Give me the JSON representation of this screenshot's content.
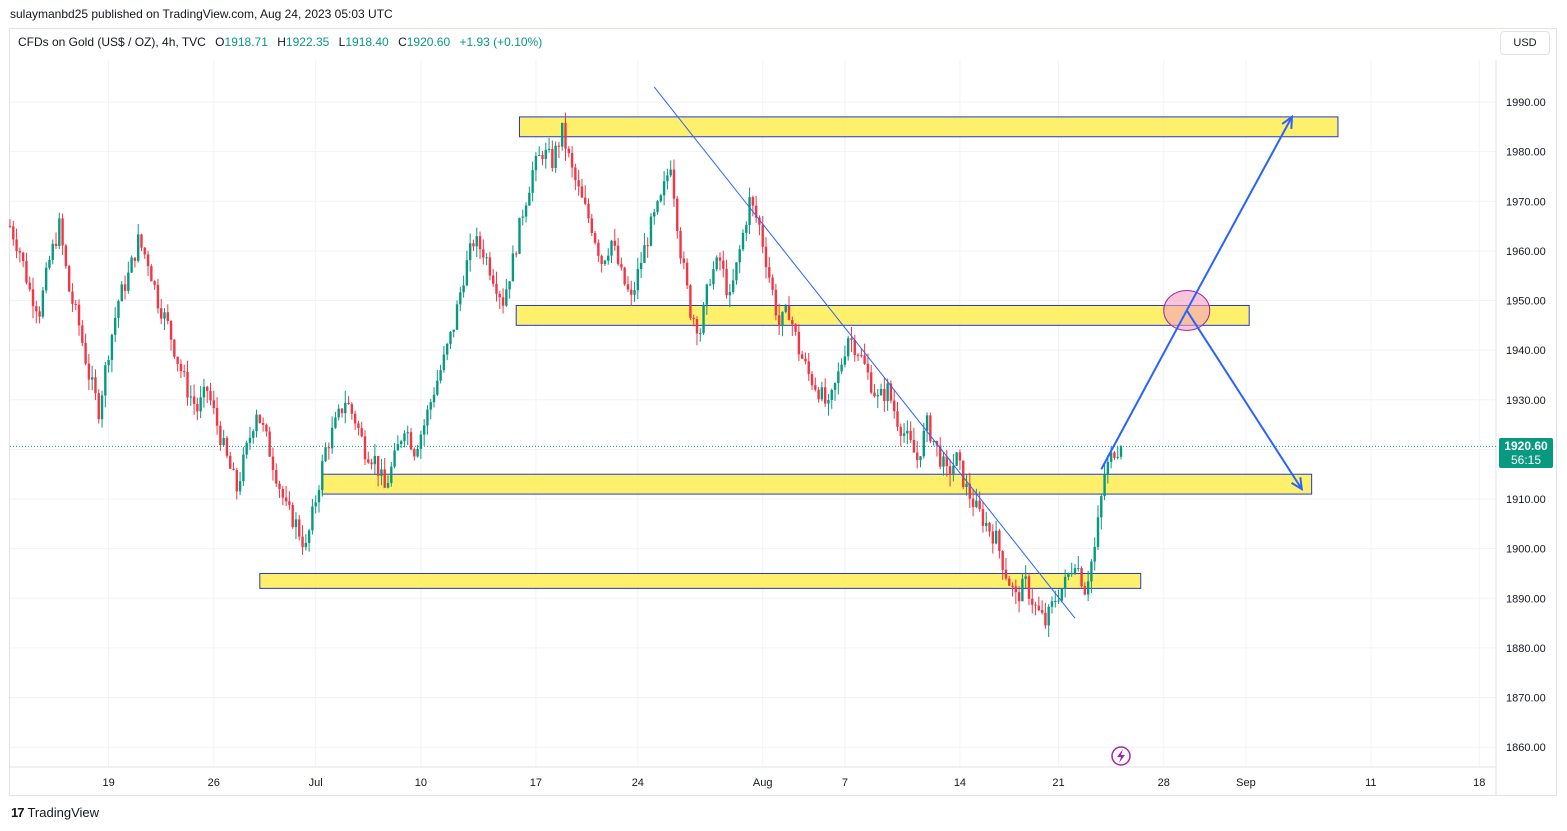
{
  "header": {
    "publish": "sulaymanbd25 published on TradingView.com, Aug 24, 2023 05:03 UTC",
    "symbol": "CFDs on Gold (US$ / OZ), 4h, TVC",
    "o_label": "O",
    "o_value": "1918.71",
    "h_label": "H",
    "h_value": "1922.35",
    "l_label": "L",
    "l_value": "1918.40",
    "c_label": "C",
    "c_value": "1920.60",
    "change": "+1.93 (+0.10%)"
  },
  "currency_button": "USD",
  "price_badge": {
    "price": "1920.60",
    "countdown": "56:15"
  },
  "footer": {
    "brand": "TradingView",
    "logo_icon": "tradingview-logo-icon"
  },
  "colors": {
    "up": "#089981",
    "down": "#f23645",
    "zone_fill": "#ffeb3b",
    "zone_border": "#1e3ad6",
    "trend_line": "#2962ff",
    "arrow": "#2962ff",
    "ellipse_fill": "#f5a0c0",
    "grid": "#f0f3fa",
    "lightning": "#9c27b0"
  },
  "chart_data": {
    "type": "candlestick",
    "title": "CFDs on Gold (US$ / OZ), 4h, TVC",
    "ylim": [
      1855,
      1998
    ],
    "y_ticks": [
      "1990.00",
      "1980.00",
      "1970.00",
      "1960.00",
      "1950.00",
      "1940.00",
      "1930.00",
      "1920.00",
      "1910.00",
      "1900.00",
      "1890.00",
      "1880.00",
      "1870.00",
      "1860.00"
    ],
    "x_ticks": [
      "19",
      "26",
      "Jul",
      "10",
      "17",
      "24",
      "Aug",
      "7",
      "14",
      "21",
      "28",
      "Sep",
      "11",
      "18"
    ],
    "last_price": 1920.6,
    "grid": true,
    "price_path": [
      [
        0,
        1965
      ],
      [
        3,
        1960
      ],
      [
        6,
        1952
      ],
      [
        9,
        1948
      ],
      [
        12,
        1958
      ],
      [
        15,
        1965
      ],
      [
        18,
        1952
      ],
      [
        21,
        1945
      ],
      [
        24,
        1935
      ],
      [
        27,
        1928
      ],
      [
        30,
        1940
      ],
      [
        33,
        1950
      ],
      [
        36,
        1955
      ],
      [
        39,
        1962
      ],
      [
        42,
        1958
      ],
      [
        45,
        1950
      ],
      [
        48,
        1945
      ],
      [
        51,
        1938
      ],
      [
        54,
        1932
      ],
      [
        57,
        1928
      ],
      [
        60,
        1932
      ],
      [
        63,
        1925
      ],
      [
        66,
        1918
      ],
      [
        69,
        1912
      ],
      [
        72,
        1920
      ],
      [
        75,
        1928
      ],
      [
        78,
        1922
      ],
      [
        81,
        1915
      ],
      [
        84,
        1908
      ],
      [
        87,
        1905
      ],
      [
        90,
        1900
      ],
      [
        93,
        1910
      ],
      [
        96,
        1920
      ],
      [
        99,
        1925
      ],
      [
        102,
        1930
      ],
      [
        105,
        1926
      ],
      [
        108,
        1920
      ],
      [
        111,
        1918
      ],
      [
        114,
        1912
      ],
      [
        117,
        1918
      ],
      [
        120,
        1925
      ],
      [
        123,
        1920
      ],
      [
        126,
        1925
      ],
      [
        129,
        1932
      ],
      [
        132,
        1938
      ],
      [
        135,
        1945
      ],
      [
        138,
        1955
      ],
      [
        141,
        1962
      ],
      [
        144,
        1960
      ],
      [
        147,
        1955
      ],
      [
        150,
        1950
      ],
      [
        153,
        1958
      ],
      [
        156,
        1968
      ],
      [
        159,
        1976
      ],
      [
        162,
        1980
      ],
      [
        165,
        1978
      ],
      [
        168,
        1984
      ],
      [
        171,
        1976
      ],
      [
        174,
        1970
      ],
      [
        177,
        1965
      ],
      [
        180,
        1958
      ],
      [
        183,
        1962
      ],
      [
        186,
        1955
      ],
      [
        189,
        1950
      ],
      [
        192,
        1958
      ],
      [
        195,
        1965
      ],
      [
        198,
        1970
      ],
      [
        201,
        1978
      ],
      [
        204,
        1960
      ],
      [
        207,
        1948
      ],
      [
        210,
        1944
      ],
      [
        213,
        1955
      ],
      [
        216,
        1958
      ],
      [
        219,
        1950
      ],
      [
        222,
        1960
      ],
      [
        225,
        1970
      ],
      [
        228,
        1965
      ],
      [
        231,
        1955
      ],
      [
        234,
        1945
      ],
      [
        237,
        1948
      ],
      [
        240,
        1940
      ],
      [
        243,
        1935
      ],
      [
        246,
        1932
      ],
      [
        249,
        1928
      ],
      [
        252,
        1935
      ],
      [
        255,
        1943
      ],
      [
        258,
        1940
      ],
      [
        261,
        1935
      ],
      [
        264,
        1930
      ],
      [
        267,
        1932
      ],
      [
        270,
        1926
      ],
      [
        273,
        1922
      ],
      [
        276,
        1918
      ],
      [
        279,
        1925
      ],
      [
        282,
        1920
      ],
      [
        285,
        1915
      ],
      [
        288,
        1918
      ],
      [
        291,
        1912
      ],
      [
        294,
        1908
      ],
      [
        297,
        1905
      ],
      [
        300,
        1902
      ],
      [
        303,
        1895
      ],
      [
        306,
        1890
      ],
      [
        309,
        1893
      ],
      [
        312,
        1888
      ],
      [
        315,
        1885
      ],
      [
        318,
        1890
      ],
      [
        321,
        1893
      ],
      [
        324,
        1898
      ],
      [
        327,
        1892
      ],
      [
        330,
        1900
      ],
      [
        333,
        1915
      ],
      [
        336,
        1920
      ],
      [
        338,
        1920.6
      ]
    ],
    "annotations": {
      "zones": [
        {
          "from_bar": 155,
          "to_bar": 404,
          "low": 1983,
          "high": 1987
        },
        {
          "from_bar": 154,
          "to_bar": 377,
          "low": 1945,
          "high": 1949
        },
        {
          "from_bar": 95,
          "to_bar": 396,
          "low": 1911,
          "high": 1915
        },
        {
          "from_bar": 76,
          "to_bar": 344,
          "low": 1892,
          "high": 1895
        }
      ],
      "trend_line": {
        "from": [
          196,
          1993
        ],
        "to": [
          324,
          1886
        ]
      },
      "forecast_path": [
        [
          332,
          1916
        ],
        [
          358,
          1948
        ],
        [
          390,
          1987
        ]
      ],
      "forecast_path_alt": [
        [
          358,
          1948
        ],
        [
          393,
          1912
        ]
      ],
      "ellipse_center": [
        358,
        1948
      ]
    }
  }
}
